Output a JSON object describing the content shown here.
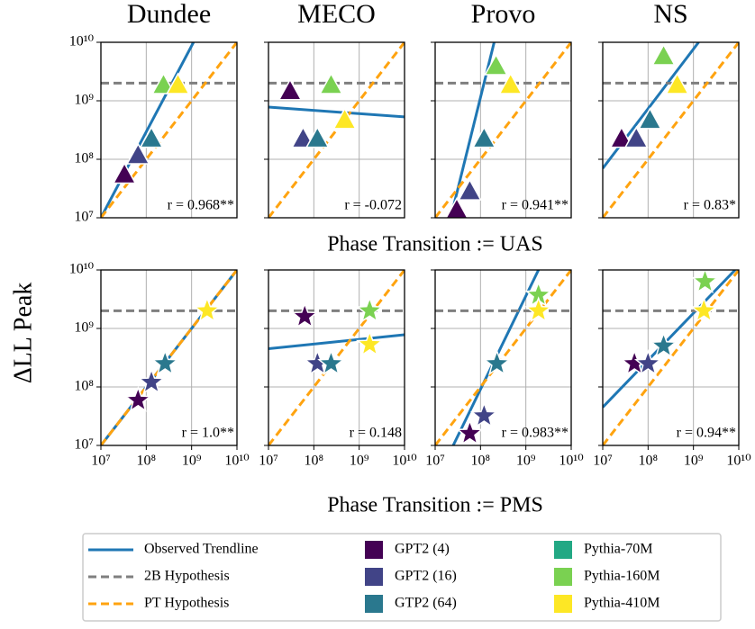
{
  "chart_data": {
    "type": "scatter",
    "ylabel": "ΔLL Peak",
    "log_scale": true,
    "grid": true,
    "xlim": [
      10000000,
      10000000000
    ],
    "ylim": [
      10000000,
      10000000000
    ],
    "xticks": [
      {
        "value": 10000000,
        "label": "10⁷"
      },
      {
        "value": 100000000,
        "label": "10⁸"
      },
      {
        "value": 1000000000,
        "label": "10⁹"
      },
      {
        "value": 10000000000,
        "label": "10¹⁰"
      }
    ],
    "yticks": [
      {
        "value": 10000000,
        "label": "10⁷"
      },
      {
        "value": 100000000,
        "label": "10⁸"
      },
      {
        "value": 1000000000,
        "label": "10⁹"
      },
      {
        "value": 10000000000,
        "label": "10¹⁰"
      }
    ],
    "columns": [
      "Dundee",
      "MECO",
      "Provo",
      "NS"
    ],
    "lines": [
      {
        "name": "Observed Trendline",
        "color": "#1f77b4",
        "style": "solid"
      },
      {
        "name": "2B Hypothesis",
        "color": "#7f7f7f",
        "style": "dashed",
        "y": 2000000000
      },
      {
        "name": "PT Hypothesis",
        "color": "#ffa30f",
        "style": "dashed",
        "x": [
          10000000,
          10000000000
        ],
        "y": [
          10000000,
          10000000000
        ]
      }
    ],
    "models": [
      {
        "name": "GPT2 (4)",
        "color": "#440154"
      },
      {
        "name": "GPT2 (16)",
        "color": "#414487"
      },
      {
        "name": "GTP2 (64)",
        "color": "#2a788e"
      },
      {
        "name": "Pythia-70M",
        "color": "#22a884"
      },
      {
        "name": "Pythia-160M",
        "color": "#7ad151"
      },
      {
        "name": "Pythia-410M",
        "color": "#fde725"
      }
    ],
    "rows": [
      {
        "xlabel": "Phase Transition := UAS",
        "marker": "triangle",
        "panels": [
          {
            "r": "r = 0.968**",
            "trend": {
              "x": [
                10000000,
                1100000000
              ],
              "y": [
                10000000,
                10000000000
              ]
            },
            "x": [
              33000000,
              66000000,
              130000000,
              null,
              240000000,
              500000000
            ],
            "y": [
              56000000,
              120000000,
              230000000,
              null,
              1900000000,
              1900000000
            ]
          },
          {
            "r": "r = -0.072",
            "trend": {
              "x": [
                10000000,
                10000000000
              ],
              "y": [
                780000000,
                530000000
              ]
            },
            "x": [
              30000000,
              58000000,
              120000000,
              null,
              240000000,
              480000000
            ],
            "y": [
              1500000000,
              230000000,
              230000000,
              null,
              1900000000,
              480000000
            ]
          },
          {
            "r": "r = 0.941**",
            "trend": {
              "x": [
                22000000,
                200000000
              ],
              "y": [
                10000000,
                10000000000
              ]
            },
            "x": [
              30000000,
              58000000,
              120000000,
              null,
              220000000,
              460000000
            ],
            "y": [
              14000000,
              29000000,
              230000000,
              null,
              4000000000,
              1900000000
            ]
          },
          {
            "r": "r = 0.83*",
            "trend": {
              "x": [
                10000000,
                1300000000
              ],
              "y": [
                70000000,
                10000000000
              ]
            },
            "x": [
              26000000,
              55000000,
              110000000,
              null,
              220000000,
              440000000
            ],
            "y": [
              230000000,
              230000000,
              480000000,
              null,
              5900000000,
              1900000000
            ]
          }
        ]
      },
      {
        "xlabel": "Phase Transition := PMS",
        "marker": "star",
        "panels": [
          {
            "r": "r = 1.0**",
            "trend": {
              "x": [
                10000000,
                10000000000
              ],
              "y": [
                10000000,
                10000000000
              ]
            },
            "x": [
              66000000,
              130000000,
              260000000,
              null,
              null,
              2200000000
            ],
            "y": [
              59000000,
              120000000,
              250000000,
              null,
              null,
              2000000000
            ]
          },
          {
            "r": "r = 0.148",
            "trend": {
              "x": [
                10000000,
                10000000000
              ],
              "y": [
                450000000,
                780000000
              ]
            },
            "x": [
              63000000,
              120000000,
              240000000,
              null,
              1700000000,
              1700000000
            ],
            "y": [
              1600000000,
              250000000,
              250000000,
              null,
              2000000000,
              530000000
            ]
          },
          {
            "r": "r = 0.983**",
            "trend": {
              "x": [
                25000000,
                1900000000
              ],
              "y": [
                10000000,
                10000000000
              ]
            },
            "x": [
              58000000,
              120000000,
              230000000,
              null,
              1900000000,
              1900000000
            ],
            "y": [
              16000000,
              32000000,
              250000000,
              null,
              3700000000,
              2000000000
            ]
          },
          {
            "r": "r = 0.94**",
            "trend": {
              "x": [
                10000000,
                8300000000
              ],
              "y": [
                45000000,
                10000000000
              ]
            },
            "x": [
              50000000,
              100000000,
              220000000,
              null,
              1800000000,
              1700000000
            ],
            "y": [
              250000000,
              250000000,
              500000000,
              null,
              6300000000,
              2000000000
            ]
          }
        ]
      }
    ]
  }
}
